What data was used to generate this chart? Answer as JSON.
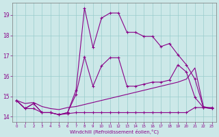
{
  "background_color": "#cce8e8",
  "grid_color": "#99cccc",
  "line_color": "#880088",
  "xlim": [
    -0.5,
    23.5
  ],
  "ylim": [
    13.75,
    19.6
  ],
  "x_ticks": [
    0,
    1,
    2,
    3,
    4,
    5,
    6,
    7,
    8,
    9,
    10,
    11,
    12,
    13,
    14,
    15,
    16,
    17,
    18,
    19,
    20,
    21,
    22,
    23
  ],
  "y_ticks": [
    14,
    15,
    16,
    17,
    18,
    19
  ],
  "xlabel": "Windchill (Refroidissement éolien,°C)",
  "line1_x": [
    0,
    1,
    2,
    3,
    4,
    5,
    6,
    7,
    8,
    9,
    10,
    11,
    12,
    13,
    14,
    15,
    16,
    17,
    18,
    19,
    20,
    21,
    22,
    23
  ],
  "line1_y": [
    14.8,
    14.4,
    14.65,
    14.2,
    14.2,
    14.1,
    14.2,
    15.3,
    19.35,
    17.4,
    18.85,
    19.1,
    19.1,
    18.15,
    18.15,
    17.95,
    17.95,
    17.45,
    17.6,
    17.05,
    16.55,
    15.85,
    14.45,
    14.4
  ],
  "line2_x": [
    0,
    1,
    2,
    3,
    4,
    5,
    6,
    7,
    8,
    9,
    10,
    11,
    12,
    13,
    14,
    15,
    16,
    17,
    18,
    19,
    20,
    21,
    22,
    23
  ],
  "line2_y": [
    14.8,
    14.4,
    14.65,
    14.2,
    14.2,
    14.1,
    14.2,
    15.1,
    16.95,
    15.5,
    16.5,
    16.9,
    16.9,
    15.5,
    15.5,
    15.6,
    15.7,
    15.7,
    15.8,
    16.55,
    16.2,
    14.95,
    14.45,
    14.4
  ],
  "line3_x": [
    0,
    1,
    2,
    3,
    4,
    5,
    6,
    7,
    8,
    9,
    10,
    11,
    12,
    13,
    14,
    15,
    16,
    17,
    18,
    19,
    20,
    21,
    22,
    23
  ],
  "line3_y": [
    14.8,
    14.4,
    14.4,
    14.2,
    14.2,
    14.1,
    14.15,
    14.2,
    14.2,
    14.2,
    14.2,
    14.2,
    14.2,
    14.2,
    14.2,
    14.2,
    14.2,
    14.2,
    14.2,
    14.2,
    14.2,
    14.45,
    14.45,
    14.45
  ],
  "line4_x": [
    0,
    1,
    2,
    3,
    4,
    5,
    6,
    7,
    8,
    9,
    10,
    11,
    12,
    13,
    14,
    15,
    16,
    17,
    18,
    19,
    20,
    21,
    22,
    23
  ],
  "line4_y": [
    14.8,
    14.65,
    14.7,
    14.5,
    14.4,
    14.35,
    14.45,
    14.5,
    14.6,
    14.7,
    14.8,
    14.9,
    15.0,
    15.1,
    15.2,
    15.3,
    15.4,
    15.5,
    15.6,
    15.7,
    15.85,
    16.4,
    14.5,
    14.4
  ]
}
